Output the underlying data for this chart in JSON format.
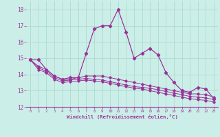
{
  "xlabel": "Windchill (Refroidissement éolien,°C)",
  "background_color": "#cceee8",
  "grid_color": "#aaddcc",
  "line_color": "#993399",
  "xlim": [
    -0.5,
    23.5
  ],
  "ylim": [
    12,
    18.5
  ],
  "yticks": [
    12,
    13,
    14,
    15,
    16,
    17,
    18
  ],
  "xticks": [
    0,
    1,
    2,
    3,
    4,
    5,
    6,
    7,
    8,
    9,
    10,
    11,
    12,
    13,
    14,
    15,
    16,
    17,
    18,
    19,
    20,
    21,
    22,
    23
  ],
  "main_line": [
    14.9,
    14.9,
    14.3,
    13.9,
    13.7,
    13.8,
    13.8,
    15.3,
    16.8,
    17.0,
    17.0,
    18.0,
    16.6,
    15.0,
    15.3,
    15.6,
    15.2,
    14.1,
    13.5,
    13.0,
    12.9,
    13.2,
    13.1,
    12.5
  ],
  "line2": [
    14.9,
    14.5,
    14.3,
    13.9,
    13.7,
    13.7,
    13.8,
    13.9,
    13.9,
    13.9,
    13.8,
    13.7,
    13.6,
    13.5,
    13.4,
    13.3,
    13.2,
    13.1,
    13.0,
    12.9,
    12.8,
    12.8,
    12.75,
    12.6
  ],
  "line3": [
    14.9,
    14.4,
    14.2,
    13.8,
    13.6,
    13.65,
    13.7,
    13.75,
    13.7,
    13.65,
    13.55,
    13.45,
    13.35,
    13.25,
    13.2,
    13.15,
    13.05,
    12.95,
    12.85,
    12.75,
    12.65,
    12.6,
    12.55,
    12.45
  ],
  "line4": [
    14.9,
    14.3,
    14.1,
    13.7,
    13.5,
    13.55,
    13.6,
    13.65,
    13.6,
    13.55,
    13.45,
    13.35,
    13.25,
    13.15,
    13.1,
    13.0,
    12.9,
    12.8,
    12.7,
    12.6,
    12.5,
    12.45,
    12.4,
    12.3
  ]
}
